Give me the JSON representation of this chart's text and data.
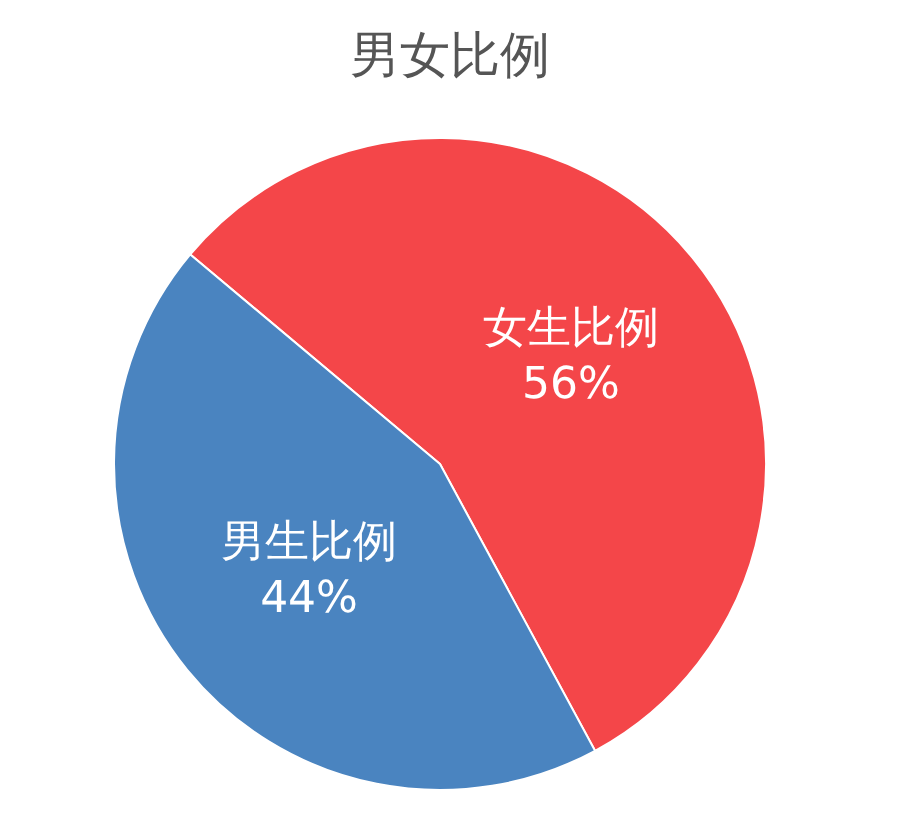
{
  "chart_data": {
    "type": "pie",
    "title": "男女比例",
    "categories": [
      "女生比例",
      "男生比例"
    ],
    "values": [
      56,
      44
    ],
    "value_labels": [
      "56%",
      "44%"
    ],
    "colors": [
      "#f44649",
      "#4a84c0"
    ],
    "legend": false
  }
}
